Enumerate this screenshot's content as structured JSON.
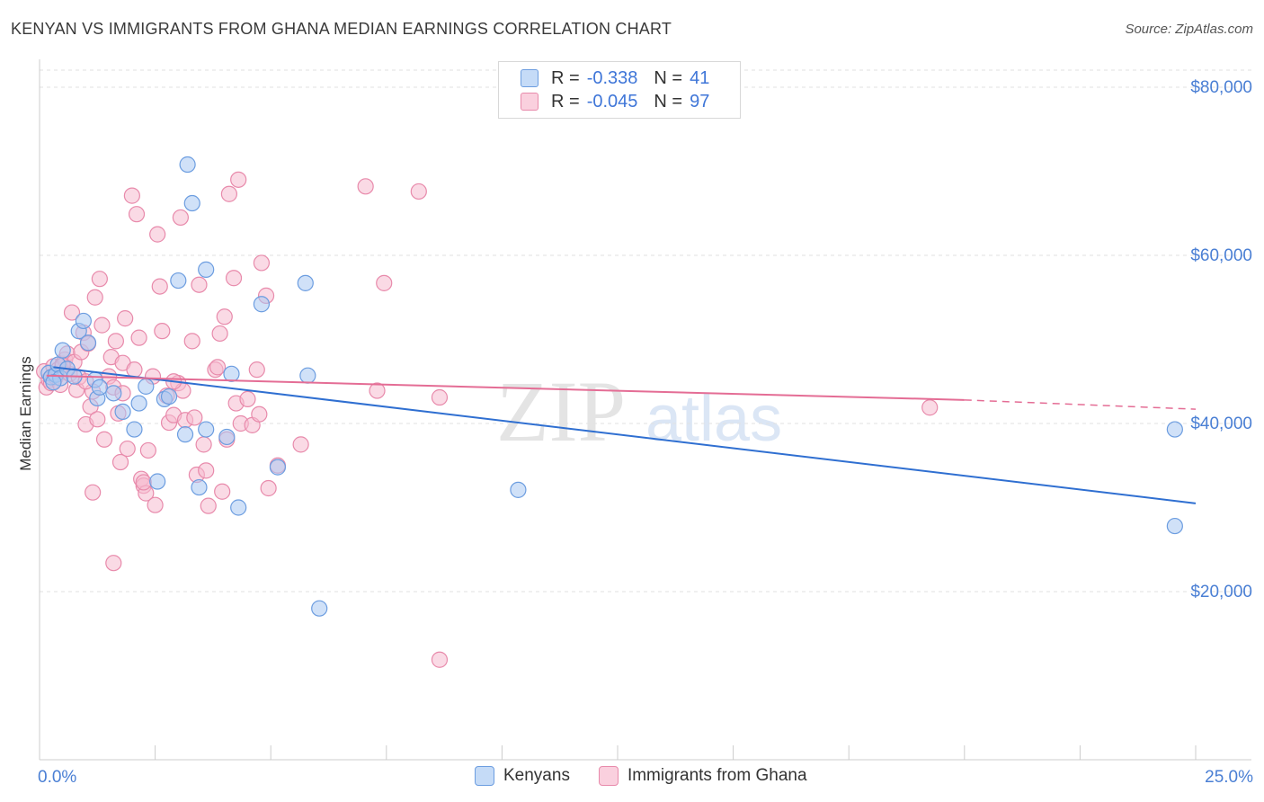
{
  "header": {
    "title": "KENYAN VS IMMIGRANTS FROM GHANA MEDIAN EARNINGS CORRELATION CHART",
    "source": "Source: ZipAtlas.com"
  },
  "watermark": {
    "zip": "ZIP",
    "atlas": "atlas"
  },
  "legend": {
    "rows": [
      {
        "r_label": "R =",
        "r_value": "-0.338",
        "n_label": "N =",
        "n_value": "41"
      },
      {
        "r_label": "R =",
        "r_value": "-0.045",
        "n_label": "N =",
        "n_value": "97"
      }
    ]
  },
  "bottom_legend": {
    "series1": "Kenyans",
    "series2": "Immigrants from Ghana"
  },
  "colors": {
    "blue_fill": "#aac8f2",
    "blue_stroke": "#6c9de0",
    "blue_line": "#2f6fd1",
    "pink_fill": "#f6bccf",
    "pink_stroke": "#e88aab",
    "pink_line": "#e46d95",
    "tick_label": "#4a7fd4",
    "grid": "#e2e2e2"
  },
  "chart_data": {
    "type": "scatter",
    "title": "KENYAN VS IMMIGRANTS FROM GHANA MEDIAN EARNINGS CORRELATION CHART",
    "xlabel": "",
    "ylabel": "Median Earnings",
    "xlim": [
      0,
      25
    ],
    "ylim": [
      0,
      82000
    ],
    "x_tick_labels": [
      "0.0%",
      "25.0%"
    ],
    "y_ticks": [
      20000,
      40000,
      60000,
      80000
    ],
    "y_tick_labels": [
      "$20,000",
      "$40,000",
      "$60,000",
      "$80,000"
    ],
    "series": [
      {
        "name": "Kenyans",
        "r": -0.338,
        "n": 41,
        "trend": {
          "x": [
            0.3,
            25.0
          ],
          "y": [
            46700,
            30500
          ]
        },
        "points": [
          [
            0.2,
            46000
          ],
          [
            0.25,
            45500
          ],
          [
            0.35,
            45800
          ],
          [
            0.4,
            47000
          ],
          [
            0.45,
            45400
          ],
          [
            0.5,
            48700
          ],
          [
            0.6,
            46500
          ],
          [
            0.75,
            45600
          ],
          [
            0.85,
            51000
          ],
          [
            0.95,
            52200
          ],
          [
            1.05,
            49600
          ],
          [
            1.2,
            45200
          ],
          [
            1.25,
            43000
          ],
          [
            1.3,
            44300
          ],
          [
            1.6,
            43600
          ],
          [
            1.8,
            41400
          ],
          [
            2.05,
            39300
          ],
          [
            2.15,
            42400
          ],
          [
            2.3,
            44400
          ],
          [
            2.55,
            33100
          ],
          [
            2.7,
            42900
          ],
          [
            2.8,
            43200
          ],
          [
            3.0,
            57000
          ],
          [
            3.15,
            38700
          ],
          [
            3.2,
            70800
          ],
          [
            3.3,
            66200
          ],
          [
            3.45,
            32400
          ],
          [
            3.6,
            39300
          ],
          [
            3.6,
            58300
          ],
          [
            4.05,
            38400
          ],
          [
            4.15,
            45900
          ],
          [
            4.3,
            30000
          ],
          [
            4.8,
            54200
          ],
          [
            5.15,
            34800
          ],
          [
            5.75,
            56700
          ],
          [
            5.8,
            45700
          ],
          [
            6.05,
            18000
          ],
          [
            10.35,
            32100
          ],
          [
            24.55,
            39300
          ],
          [
            24.55,
            27800
          ],
          [
            0.3,
            44900
          ]
        ]
      },
      {
        "name": "Immigrants from Ghana",
        "r": -0.045,
        "n": 97,
        "trend": {
          "x": [
            0.15,
            20.0
          ],
          "y": [
            45700,
            42800
          ]
        },
        "trend_dashed": {
          "x": [
            20.0,
            25.0
          ],
          "y": [
            42800,
            41700
          ]
        },
        "points": [
          [
            0.1,
            46200
          ],
          [
            0.15,
            44300
          ],
          [
            0.2,
            45200
          ],
          [
            0.25,
            44800
          ],
          [
            0.3,
            46800
          ],
          [
            0.35,
            45500
          ],
          [
            0.4,
            46400
          ],
          [
            0.45,
            44600
          ],
          [
            0.5,
            47100
          ],
          [
            0.55,
            47600
          ],
          [
            0.6,
            48300
          ],
          [
            0.65,
            45900
          ],
          [
            0.7,
            53200
          ],
          [
            0.75,
            47300
          ],
          [
            0.8,
            44000
          ],
          [
            0.85,
            45500
          ],
          [
            0.9,
            48500
          ],
          [
            0.95,
            50800
          ],
          [
            1.0,
            39900
          ],
          [
            1.05,
            49500
          ],
          [
            1.1,
            42000
          ],
          [
            1.15,
            43800
          ],
          [
            1.2,
            55000
          ],
          [
            1.25,
            40500
          ],
          [
            1.3,
            57200
          ],
          [
            1.35,
            51700
          ],
          [
            1.4,
            38100
          ],
          [
            1.5,
            45600
          ],
          [
            1.55,
            47900
          ],
          [
            1.6,
            44300
          ],
          [
            1.65,
            49800
          ],
          [
            1.7,
            41200
          ],
          [
            1.75,
            35400
          ],
          [
            1.8,
            47200
          ],
          [
            1.85,
            52500
          ],
          [
            1.9,
            37000
          ],
          [
            2.0,
            67100
          ],
          [
            2.05,
            46400
          ],
          [
            2.1,
            64900
          ],
          [
            2.15,
            50200
          ],
          [
            2.2,
            33400
          ],
          [
            2.25,
            32600
          ],
          [
            2.3,
            31700
          ],
          [
            2.35,
            36800
          ],
          [
            2.45,
            45600
          ],
          [
            2.5,
            30300
          ],
          [
            2.55,
            62500
          ],
          [
            2.6,
            56300
          ],
          [
            2.65,
            51000
          ],
          [
            2.75,
            43300
          ],
          [
            2.8,
            40100
          ],
          [
            2.9,
            41000
          ],
          [
            3.0,
            44800
          ],
          [
            3.05,
            64500
          ],
          [
            3.1,
            43900
          ],
          [
            3.15,
            40400
          ],
          [
            3.3,
            49800
          ],
          [
            3.35,
            40700
          ],
          [
            3.4,
            33900
          ],
          [
            3.45,
            56500
          ],
          [
            3.55,
            37500
          ],
          [
            3.6,
            34400
          ],
          [
            3.65,
            30200
          ],
          [
            3.8,
            46400
          ],
          [
            3.85,
            46700
          ],
          [
            3.9,
            50700
          ],
          [
            3.95,
            31900
          ],
          [
            4.0,
            52700
          ],
          [
            4.05,
            38100
          ],
          [
            4.1,
            67300
          ],
          [
            4.2,
            57300
          ],
          [
            4.25,
            42400
          ],
          [
            4.3,
            69000
          ],
          [
            4.35,
            40000
          ],
          [
            4.5,
            42900
          ],
          [
            4.6,
            39800
          ],
          [
            4.7,
            46400
          ],
          [
            4.75,
            41100
          ],
          [
            4.8,
            59100
          ],
          [
            4.9,
            55200
          ],
          [
            4.95,
            32300
          ],
          [
            5.15,
            35000
          ],
          [
            5.65,
            37500
          ],
          [
            7.05,
            68200
          ],
          [
            7.3,
            43900
          ],
          [
            7.45,
            56700
          ],
          [
            8.2,
            67600
          ],
          [
            8.65,
            11900
          ],
          [
            8.65,
            43100
          ],
          [
            19.25,
            41900
          ],
          [
            1.0,
            45000
          ],
          [
            2.25,
            33000
          ],
          [
            1.6,
            23400
          ],
          [
            1.15,
            31800
          ],
          [
            0.5,
            46900
          ],
          [
            1.8,
            43600
          ],
          [
            2.9,
            45000
          ]
        ]
      }
    ]
  }
}
